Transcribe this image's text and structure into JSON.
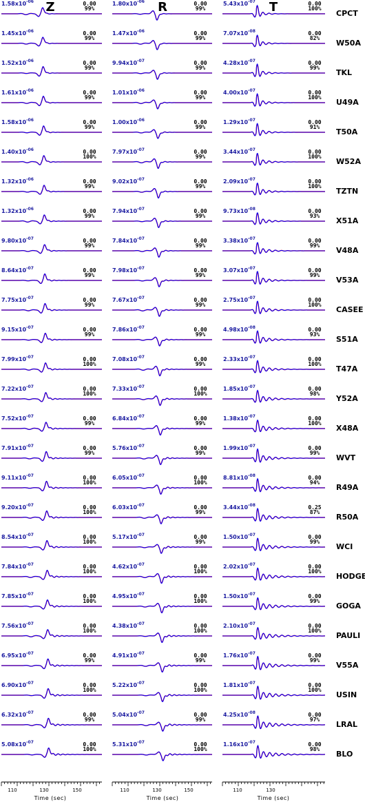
{
  "colors": {
    "observed": "#000000",
    "synthetic": "#ff0000",
    "overlay": "#0000ff",
    "amplitude_text": "#1a1aa0",
    "text": "#000000"
  },
  "chart_data": {
    "type": "line",
    "components": [
      "Z",
      "R",
      "T"
    ],
    "x_label": "Time (sec)",
    "x_ticks": [
      [
        "110",
        "130",
        "150"
      ],
      [
        "110",
        "130",
        "150"
      ],
      [
        "110",
        "130"
      ]
    ],
    "rows": [
      {
        "station": "CPCT",
        "amp": [
          "1.58x10-06",
          "1.80x10-06",
          "5.43x10-07"
        ],
        "shift": [
          "0.00",
          "0.00",
          "0.00"
        ],
        "fit": [
          "99%",
          "99%",
          "100%"
        ]
      },
      {
        "station": "W50A",
        "amp": [
          "1.45x10-06",
          "1.47x10-06",
          "7.07x10-08"
        ],
        "shift": [
          "0.00",
          "0.00",
          "0.00"
        ],
        "fit": [
          "99%",
          "99%",
          "82%"
        ]
      },
      {
        "station": "TKL",
        "amp": [
          "1.52x10-06",
          "9.94x10-07",
          "4.28x10-07"
        ],
        "shift": [
          "0.00",
          "0.00",
          "0.00"
        ],
        "fit": [
          "99%",
          "99%",
          "99%"
        ]
      },
      {
        "station": "U49A",
        "amp": [
          "1.61x10-06",
          "1.01x10-06",
          "4.00x10-07"
        ],
        "shift": [
          "0.00",
          "0.00",
          "0.00"
        ],
        "fit": [
          "99%",
          "99%",
          "100%"
        ]
      },
      {
        "station": "T50A",
        "amp": [
          "1.58x10-06",
          "1.00x10-06",
          "1.29x10-07"
        ],
        "shift": [
          "0.00",
          "0.00",
          "0.00"
        ],
        "fit": [
          "99%",
          "99%",
          "91%"
        ]
      },
      {
        "station": "W52A",
        "amp": [
          "1.40x10-06",
          "7.97x10-07",
          "3.44x10-07"
        ],
        "shift": [
          "0.00",
          "0.00",
          "0.00"
        ],
        "fit": [
          "100%",
          "99%",
          "100%"
        ]
      },
      {
        "station": "TZTN",
        "amp": [
          "1.32x10-06",
          "9.02x10-07",
          "2.09x10-07"
        ],
        "shift": [
          "0.00",
          "0.00",
          "0.00"
        ],
        "fit": [
          "99%",
          "99%",
          "100%"
        ]
      },
      {
        "station": "X51A",
        "amp": [
          "1.32x10-06",
          "7.94x10-07",
          "9.73x10-08"
        ],
        "shift": [
          "0.00",
          "0.00",
          "0.00"
        ],
        "fit": [
          "99%",
          "99%",
          "93%"
        ]
      },
      {
        "station": "V48A",
        "amp": [
          "9.80x10-07",
          "7.84x10-07",
          "3.38x10-07"
        ],
        "shift": [
          "0.00",
          "0.00",
          "0.00"
        ],
        "fit": [
          "99%",
          "99%",
          "99%"
        ]
      },
      {
        "station": "V53A",
        "amp": [
          "8.64x10-07",
          "7.98x10-07",
          "3.07x10-07"
        ],
        "shift": [
          "0.00",
          "0.00",
          "0.00"
        ],
        "fit": [
          "99%",
          "99%",
          "99%"
        ]
      },
      {
        "station": "CASEE",
        "amp": [
          "7.75x10-07",
          "7.67x10-07",
          "2.75x10-07"
        ],
        "shift": [
          "0.00",
          "0.00",
          "0.00"
        ],
        "fit": [
          "99%",
          "99%",
          "100%"
        ]
      },
      {
        "station": "S51A",
        "amp": [
          "9.15x10-07",
          "7.86x10-07",
          "4.98x10-08"
        ],
        "shift": [
          "0.00",
          "0.00",
          "0.00"
        ],
        "fit": [
          "99%",
          "99%",
          "93%"
        ]
      },
      {
        "station": "T47A",
        "amp": [
          "7.99x10-07",
          "7.08x10-07",
          "2.33x10-07"
        ],
        "shift": [
          "0.00",
          "0.00",
          "0.00"
        ],
        "fit": [
          "100%",
          "99%",
          "100%"
        ]
      },
      {
        "station": "Y52A",
        "amp": [
          "7.22x10-07",
          "7.33x10-07",
          "1.85x10-07"
        ],
        "shift": [
          "0.00",
          "0.00",
          "0.00"
        ],
        "fit": [
          "100%",
          "100%",
          "98%"
        ]
      },
      {
        "station": "X48A",
        "amp": [
          "7.52x10-07",
          "6.84x10-07",
          "1.38x10-07"
        ],
        "shift": [
          "0.00",
          "0.00",
          "0.00"
        ],
        "fit": [
          "99%",
          "99%",
          "100%"
        ]
      },
      {
        "station": "WVT",
        "amp": [
          "7.91x10-07",
          "5.76x10-07",
          "1.99x10-07"
        ],
        "shift": [
          "0.00",
          "0.00",
          "0.00"
        ],
        "fit": [
          "99%",
          "99%",
          "99%"
        ]
      },
      {
        "station": "R49A",
        "amp": [
          "9.11x10-07",
          "6.05x10-07",
          "8.81x10-08"
        ],
        "shift": [
          "0.00",
          "0.00",
          "0.00"
        ],
        "fit": [
          "100%",
          "100%",
          "94%"
        ]
      },
      {
        "station": "R50A",
        "amp": [
          "9.20x10-07",
          "6.03x10-07",
          "3.44x10-08"
        ],
        "shift": [
          "0.00",
          "0.00",
          "0.25"
        ],
        "fit": [
          "100%",
          "99%",
          "87%"
        ]
      },
      {
        "station": "WCI",
        "amp": [
          "8.54x10-07",
          "5.17x10-07",
          "1.50x10-07"
        ],
        "shift": [
          "0.00",
          "0.00",
          "0.00"
        ],
        "fit": [
          "100%",
          "99%",
          "99%"
        ]
      },
      {
        "station": "HODGE",
        "amp": [
          "7.84x10-07",
          "4.62x10-07",
          "2.02x10-07"
        ],
        "shift": [
          "0.00",
          "0.00",
          "0.00"
        ],
        "fit": [
          "100%",
          "100%",
          "100%"
        ]
      },
      {
        "station": "GOGA",
        "amp": [
          "7.85x10-07",
          "4.95x10-07",
          "1.50x10-07"
        ],
        "shift": [
          "0.00",
          "0.00",
          "0.00"
        ],
        "fit": [
          "100%",
          "100%",
          "99%"
        ]
      },
      {
        "station": "PAULI",
        "amp": [
          "7.56x10-07",
          "4.38x10-07",
          "2.10x10-07"
        ],
        "shift": [
          "0.00",
          "0.00",
          "0.00"
        ],
        "fit": [
          "100%",
          "100%",
          "100%"
        ]
      },
      {
        "station": "V55A",
        "amp": [
          "6.95x10-07",
          "4.91x10-07",
          "1.76x10-07"
        ],
        "shift": [
          "0.00",
          "0.00",
          "0.00"
        ],
        "fit": [
          "99%",
          "99%",
          "99%"
        ]
      },
      {
        "station": "USIN",
        "amp": [
          "6.90x10-07",
          "5.22x10-07",
          "1.81x10-07"
        ],
        "shift": [
          "0.00",
          "0.00",
          "0.00"
        ],
        "fit": [
          "100%",
          "100%",
          "100%"
        ]
      },
      {
        "station": "LRAL",
        "amp": [
          "6.32x10-07",
          "5.04x10-07",
          "4.25x10-08"
        ],
        "shift": [
          "0.00",
          "0.00",
          "0.00"
        ],
        "fit": [
          "99%",
          "99%",
          "97%"
        ]
      },
      {
        "station": "BLO",
        "amp": [
          "5.08x10-07",
          "5.31x10-07",
          "1.16x10-07"
        ],
        "shift": [
          "0.00",
          "0.00",
          "0.00"
        ],
        "fit": [
          "100%",
          "100%",
          "98%"
        ]
      }
    ]
  }
}
